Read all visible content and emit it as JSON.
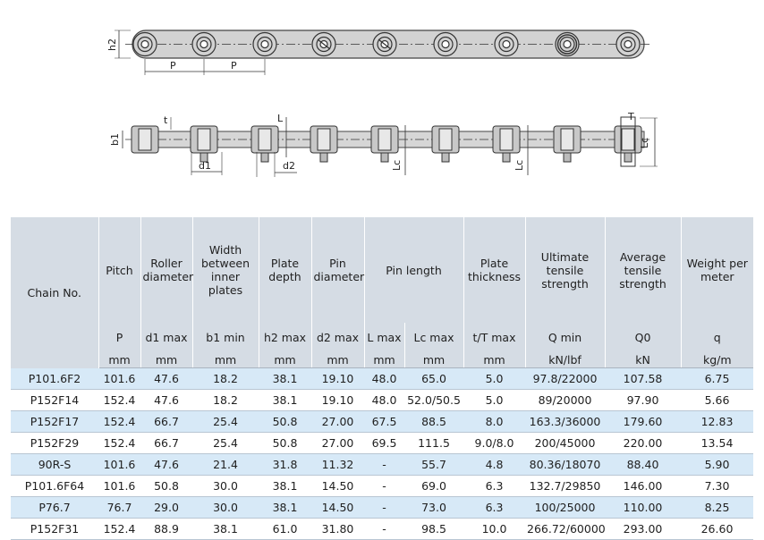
{
  "diagram": {
    "top_labels": {
      "h2": "h2",
      "pitch1": "P",
      "pitch2": "P"
    },
    "side_labels": {
      "t": "t",
      "b1": "b1",
      "d1": "d1",
      "d2": "d2",
      "L": "L",
      "Lc": "Lc",
      "T": "T"
    }
  },
  "table": {
    "chain_header": "Chain No.",
    "columns": [
      {
        "name": "Pitch",
        "sym": "P",
        "unit": "mm"
      },
      {
        "name": "Roller diameter",
        "sym": "d1 max",
        "unit": "mm"
      },
      {
        "name": "Width between inner plates",
        "sym": "b1 min",
        "unit": "mm"
      },
      {
        "name": "Plate depth",
        "sym": "h2 max",
        "unit": "mm"
      },
      {
        "name": "Pin diameter",
        "sym": "d2 max",
        "unit": "mm"
      },
      {
        "name": "Pin length",
        "sym": "L max",
        "unit": "mm"
      },
      {
        "name": "",
        "sym": "Lc max",
        "unit": "mm"
      },
      {
        "name": "Plate thickness",
        "sym": "t/T max",
        "unit": "mm"
      },
      {
        "name": "Ultimate tensile strength",
        "sym": "Q min",
        "unit": "kN/lbf"
      },
      {
        "name": "Average tensile strength",
        "sym": "Q0",
        "unit": "kN"
      },
      {
        "name": "Weight per meter",
        "sym": "q",
        "unit": "kg/m"
      }
    ],
    "rows": [
      [
        "P101.6F2",
        "101.6",
        "47.6",
        "18.2",
        "38.1",
        "19.10",
        "48.0",
        "65.0",
        "5.0",
        "97.8/22000",
        "107.58",
        "6.75"
      ],
      [
        "P152F14",
        "152.4",
        "47.6",
        "18.2",
        "38.1",
        "19.10",
        "48.0",
        "52.0/50.5",
        "5.0",
        "89/20000",
        "97.90",
        "5.66"
      ],
      [
        "P152F17",
        "152.4",
        "66.7",
        "25.4",
        "50.8",
        "27.00",
        "67.5",
        "88.5",
        "8.0",
        "163.3/36000",
        "179.60",
        "12.83"
      ],
      [
        "P152F29",
        "152.4",
        "66.7",
        "25.4",
        "50.8",
        "27.00",
        "69.5",
        "111.5",
        "9.0/8.0",
        "200/45000",
        "220.00",
        "13.54"
      ],
      [
        "90R-S",
        "101.6",
        "47.6",
        "21.4",
        "31.8",
        "11.32",
        "-",
        "55.7",
        "4.8",
        "80.36/18070",
        "88.40",
        "5.90"
      ],
      [
        "P101.6F64",
        "101.6",
        "50.8",
        "30.0",
        "38.1",
        "14.50",
        "-",
        "69.0",
        "6.3",
        "132.7/29850",
        "146.00",
        "7.30"
      ],
      [
        "P76.7",
        "76.7",
        "29.0",
        "30.0",
        "38.1",
        "14.50",
        "-",
        "73.0",
        "6.3",
        "100/25000",
        "110.00",
        "8.25"
      ],
      [
        "P152F31",
        "152.4",
        "88.9",
        "38.1",
        "61.0",
        "31.80",
        "-",
        "98.5",
        "10.0",
        "266.72/60000",
        "293.00",
        "26.60"
      ]
    ]
  }
}
